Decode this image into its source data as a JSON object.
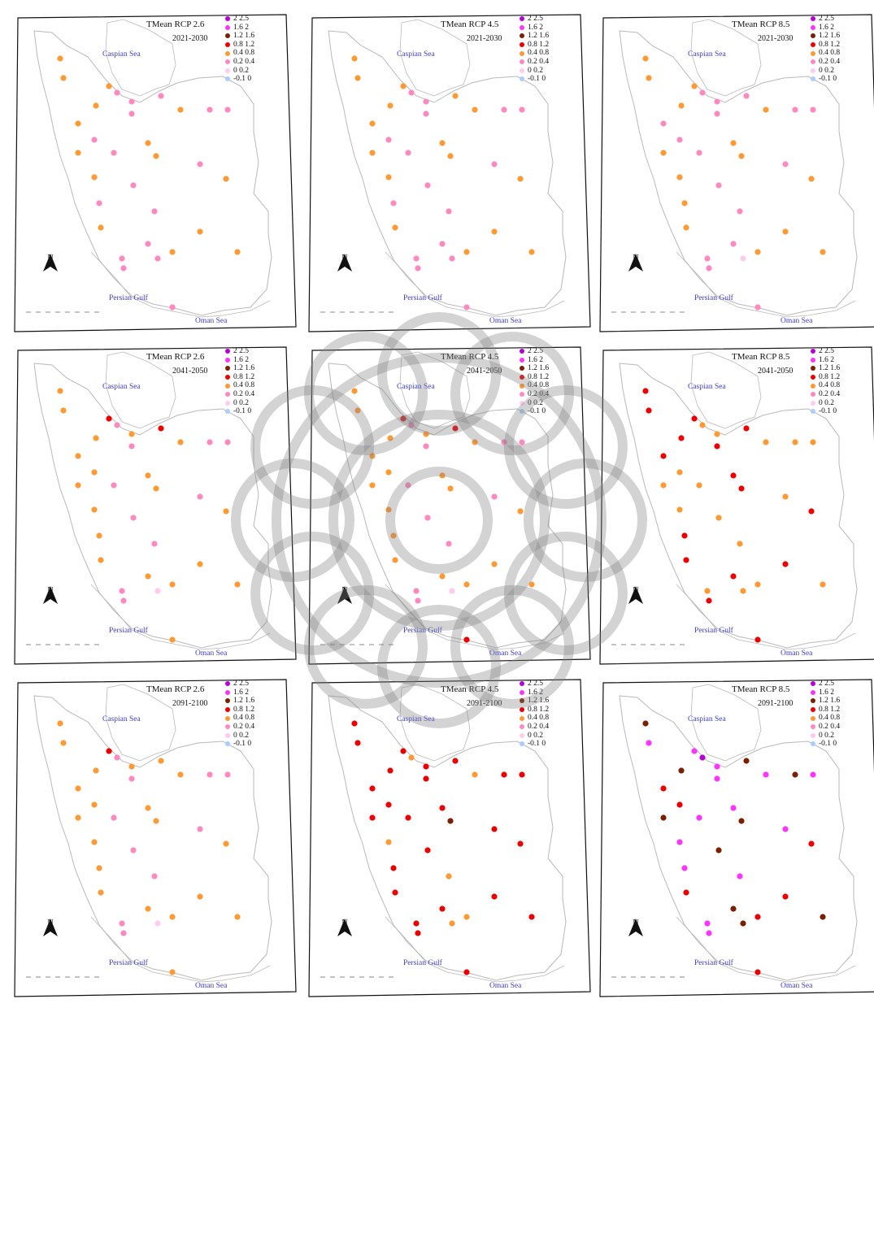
{
  "map": {
    "title_prefix": "TMean",
    "scenarios": [
      "RCP 2.6",
      "RCP 4.5",
      "RCP 8.5"
    ],
    "periods": [
      "2021-2030",
      "2041-2050",
      "2091-2100"
    ],
    "place_labels": {
      "caspian": "Caspian Sea",
      "persian_gulf": "Persian Gulf",
      "oman": "Oman Sea"
    },
    "north_label": "N",
    "legend": [
      {
        "label": "2 2.5",
        "color": "#b700d9"
      },
      {
        "label": "1.6 2",
        "color": "#ff33ff"
      },
      {
        "label": "1.2 1.6",
        "color": "#7a1f00"
      },
      {
        "label": "0.8 1.2",
        "color": "#ee0000"
      },
      {
        "label": "0.4 0.8",
        "color": "#ff9933"
      },
      {
        "label": "0.2 0.4",
        "color": "#ff88c0"
      },
      {
        "label": "0 0.2",
        "color": "#ffccee"
      },
      {
        "label": "-0.1 0",
        "color": "#aaccff"
      }
    ],
    "colors": {
      "border": "#b9b9b9",
      "frame": "#111111",
      "sea_label": "#3b3bd8"
    }
  },
  "panels": [
    {
      "scenario": "RCP 2.6",
      "period": "2021-2030",
      "title": "TMean RCP 2.6",
      "classes": [
        4,
        4,
        4,
        5,
        5,
        5,
        4,
        5,
        5,
        4,
        4,
        5,
        5,
        4,
        4,
        5,
        4,
        5,
        4,
        4,
        5,
        5,
        4,
        5,
        4,
        5,
        5,
        4,
        5,
        5,
        5,
        4
      ]
    },
    {
      "scenario": "RCP 4.5",
      "period": "2021-2030",
      "title": "TMean RCP 4.5",
      "classes": [
        4,
        4,
        4,
        5,
        5,
        4,
        4,
        5,
        5,
        4,
        4,
        5,
        5,
        4,
        4,
        5,
        4,
        5,
        4,
        4,
        5,
        5,
        4,
        5,
        4,
        5,
        5,
        4,
        5,
        5,
        5,
        4
      ]
    },
    {
      "scenario": "RCP 8.5",
      "period": "2021-2030",
      "title": "TMean RCP 8.5",
      "classes": [
        4,
        4,
        4,
        5,
        5,
        5,
        4,
        5,
        5,
        4,
        5,
        5,
        5,
        4,
        4,
        5,
        4,
        5,
        4,
        4,
        5,
        4,
        4,
        5,
        4,
        5,
        5,
        4,
        6,
        5,
        5,
        4
      ]
    },
    {
      "scenario": "RCP 2.6",
      "period": "2041-2050",
      "title": "TMean RCP 2.6",
      "classes": [
        4,
        4,
        3,
        4,
        5,
        3,
        4,
        5,
        5,
        4,
        4,
        4,
        5,
        4,
        4,
        5,
        4,
        5,
        4,
        4,
        5,
        4,
        4,
        5,
        4,
        5,
        4,
        4,
        6,
        4,
        5,
        4
      ]
    },
    {
      "scenario": "RCP 4.5",
      "period": "2041-2050",
      "title": "TMean RCP 4.5",
      "classes": [
        4,
        4,
        3,
        4,
        5,
        3,
        4,
        5,
        5,
        4,
        4,
        4,
        5,
        4,
        4,
        5,
        4,
        5,
        4,
        4,
        5,
        4,
        4,
        5,
        4,
        5,
        4,
        4,
        6,
        3,
        5,
        4
      ]
    },
    {
      "scenario": "RCP 8.5",
      "period": "2041-2050",
      "title": "TMean RCP 8.5",
      "classes": [
        3,
        3,
        3,
        4,
        4,
        3,
        4,
        4,
        4,
        3,
        3,
        4,
        3,
        3,
        4,
        4,
        3,
        4,
        3,
        4,
        4,
        3,
        3,
        4,
        3,
        4,
        3,
        4,
        4,
        3,
        3,
        4
      ]
    },
    {
      "scenario": "RCP 2.6",
      "period": "2091-2100",
      "title": "TMean RCP 2.6",
      "classes": [
        4,
        4,
        3,
        4,
        5,
        4,
        4,
        5,
        5,
        4,
        4,
        4,
        5,
        4,
        4,
        5,
        4,
        5,
        4,
        4,
        5,
        4,
        4,
        5,
        4,
        5,
        4,
        4,
        6,
        4,
        5,
        4
      ]
    },
    {
      "scenario": "RCP 4.5",
      "period": "2091-2100",
      "title": "TMean RCP 4.5",
      "classes": [
        3,
        3,
        3,
        3,
        4,
        3,
        4,
        3,
        3,
        3,
        3,
        3,
        3,
        3,
        3,
        3,
        2,
        3,
        3,
        4,
        3,
        3,
        3,
        4,
        3,
        3,
        3,
        4,
        4,
        3,
        3,
        3
      ]
    },
    {
      "scenario": "RCP 8.5",
      "period": "2091-2100",
      "title": "TMean RCP 8.5",
      "classes": [
        2,
        1,
        1,
        1,
        0,
        2,
        1,
        2,
        1,
        2,
        3,
        3,
        1,
        1,
        2,
        1,
        2,
        1,
        3,
        1,
        2,
        1,
        3,
        1,
        3,
        1,
        2,
        3,
        2,
        3,
        1,
        2
      ]
    }
  ]
}
